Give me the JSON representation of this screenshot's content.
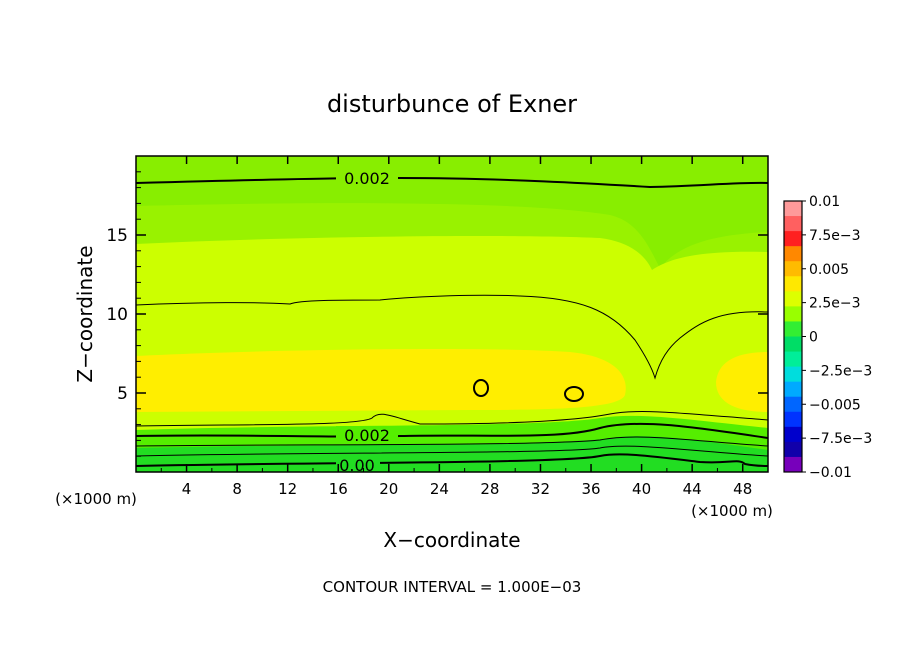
{
  "chart_data": {
    "type": "heatmap",
    "title": "disturbunce of Exner",
    "xlabel": "X−coordinate",
    "ylabel": "Z−coordinate",
    "x_unit_left": "(×1000 m)",
    "x_unit_right": "(×1000 m)",
    "x_ticks": [
      "4",
      "8",
      "12",
      "16",
      "20",
      "24",
      "28",
      "32",
      "36",
      "40",
      "44",
      "48"
    ],
    "y_ticks": [
      "5",
      "10",
      "15"
    ],
    "xlim": [
      0,
      50
    ],
    "ylim": [
      0,
      20
    ],
    "contour_labels": [
      "0.002",
      "0.002",
      "0.00"
    ],
    "footer": "CONTOUR INTERVAL = 1.000E−03",
    "colorbar": {
      "labels": [
        "0.01",
        "7.5e−3",
        "0.005",
        "2.5e−3",
        "0",
        "−2.5e−3",
        "−0.005",
        "−7.5e−3",
        "−0.01"
      ],
      "colors": [
        "#fe9a9a",
        "#ff6060",
        "#ff2020",
        "#ff8800",
        "#ffbb00",
        "#ffe800",
        "#ddff00",
        "#99ff00",
        "#33ee33",
        "#00dd66",
        "#00ee99",
        "#00dddd",
        "#00aaff",
        "#0066ff",
        "#0033ff",
        "#0000cc",
        "#1100aa",
        "#7700bb"
      ]
    },
    "band_colors": {
      "top": "#88ee00",
      "upper": "#99f200",
      "middle": "#ccff00",
      "core": "#ffee00",
      "lower": "#55ee00",
      "bottom": "#22dd22"
    },
    "grid": false,
    "legend": "right"
  }
}
